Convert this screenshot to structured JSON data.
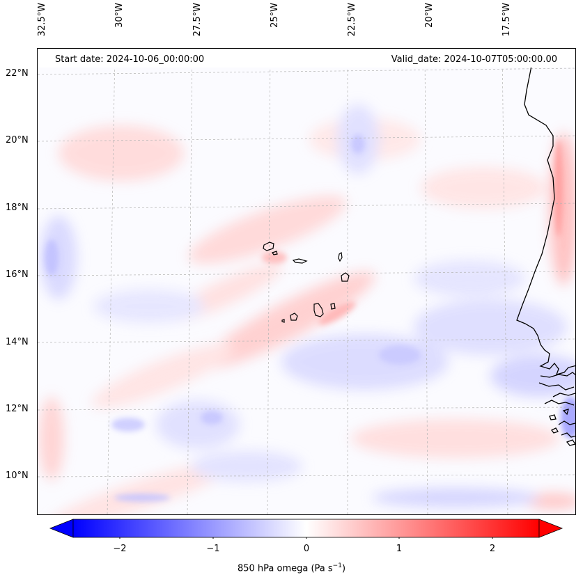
{
  "map": {
    "start_date_text": "Start date: 2024-10-06_00:00:00",
    "valid_date_text": "Valid_date: 2024-10-07T05:00:00.00",
    "lon_labels": [
      "32.5°W",
      "30°W",
      "27.5°W",
      "25°W",
      "22.5°W",
      "20°W",
      "17.5°W"
    ],
    "lat_labels": [
      "22°N",
      "20°N",
      "18°N",
      "16°N",
      "14°N",
      "12°N",
      "10°N"
    ],
    "field": "850 hPa omega",
    "colormap": "bwr",
    "colors": {
      "negative": "#0000ff",
      "zero": "#ffffff",
      "positive": "#ff0000",
      "coast": "#000000",
      "grid": "#b4b4b4"
    }
  },
  "colorbar": {
    "ticks": [
      "−2",
      "−1",
      "0",
      "1",
      "2"
    ],
    "label": "850 hPa omega (Pa s",
    "label_sup": "−1",
    "label_end": ")"
  }
}
